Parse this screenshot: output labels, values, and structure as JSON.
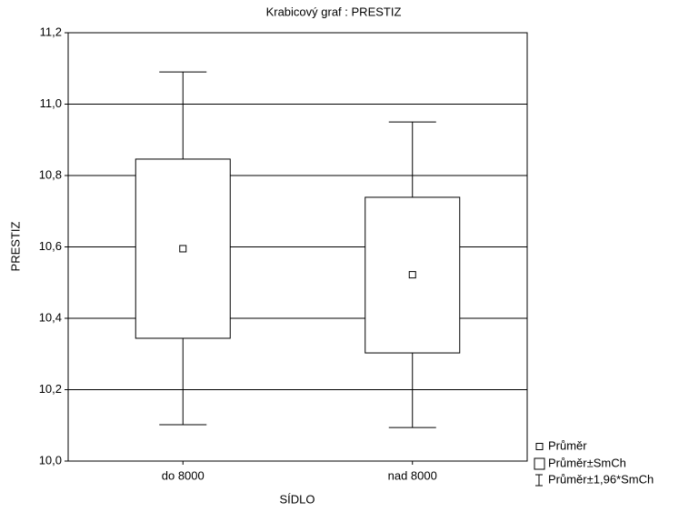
{
  "chart_data": {
    "type": "box",
    "title": "Krabicový graf :  PRESTIZ",
    "x_label": "SÍDLO",
    "y_label": "PRESTIZ",
    "categories": [
      "do 8000",
      "nad 8000"
    ],
    "boxes": [
      {
        "mean": 10.595,
        "box_low": 10.344,
        "box_high": 10.846,
        "whisker_low": 10.102,
        "whisker_high": 11.09
      },
      {
        "mean": 10.522,
        "box_low": 10.303,
        "box_high": 10.739,
        "whisker_low": 10.094,
        "whisker_high": 10.95
      }
    ],
    "ylim": [
      10.0,
      11.2
    ],
    "yticks": [
      {
        "value": 10.0,
        "label": "10,0"
      },
      {
        "value": 10.2,
        "label": "10,2"
      },
      {
        "value": 10.4,
        "label": "10,4"
      },
      {
        "value": 10.6,
        "label": "10,6"
      },
      {
        "value": 10.8,
        "label": "10,8"
      },
      {
        "value": 11.0,
        "label": "11,0"
      },
      {
        "value": 11.2,
        "label": "11,2"
      }
    ],
    "grid": true,
    "color": "#000000",
    "legend": [
      "Průměr",
      "Průměr±SmCh",
      "Průměr±1,96*SmCh"
    ],
    "legend_position": "bottom-right"
  }
}
